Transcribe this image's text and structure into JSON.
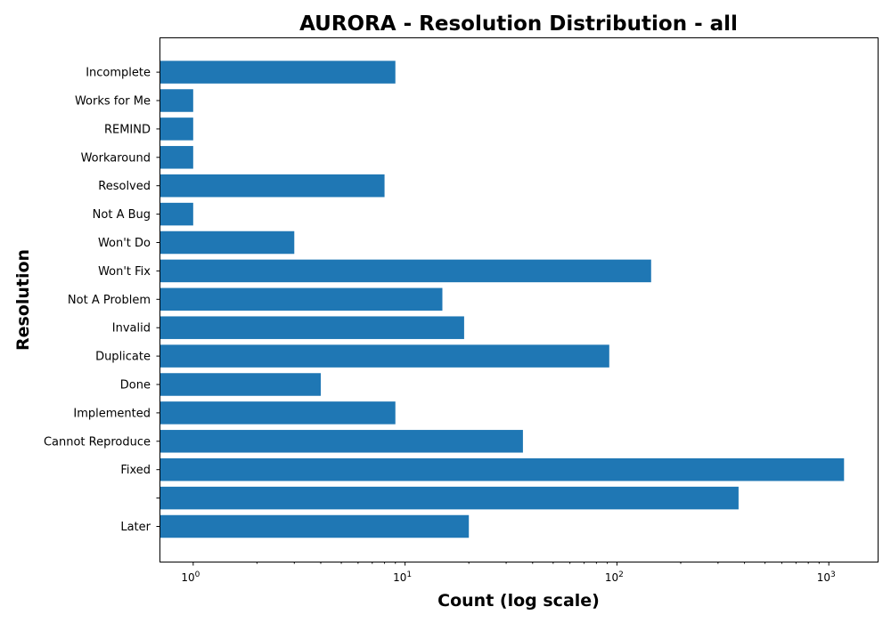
{
  "chart_data": {
    "type": "bar",
    "orientation": "horizontal",
    "title": "AURORA - Resolution Distribution - all",
    "xlabel": "Count (log scale)",
    "ylabel": "Resolution",
    "xscale": "log",
    "xlim": [
      0.7,
      1700
    ],
    "xticks": [
      {
        "base": "10",
        "exp": "0",
        "value": 1
      },
      {
        "base": "10",
        "exp": "1",
        "value": 10
      },
      {
        "base": "10",
        "exp": "2",
        "value": 100
      },
      {
        "base": "10",
        "exp": "3",
        "value": 1000
      }
    ],
    "grid": false,
    "bar_color": "#1f77b4",
    "categories": [
      "Later",
      "",
      "Fixed",
      "Cannot Reproduce",
      "Implemented",
      "Done",
      "Duplicate",
      "Invalid",
      "Not A Problem",
      "Won't Fix",
      "Won't Do",
      "Not A Bug",
      "Resolved",
      "Workaround",
      "REMIND",
      "Works for Me",
      "Incomplete"
    ],
    "values": [
      20,
      375,
      1180,
      36,
      9,
      4,
      92,
      19,
      15,
      145,
      3,
      1,
      8,
      1,
      1,
      1,
      9
    ]
  }
}
